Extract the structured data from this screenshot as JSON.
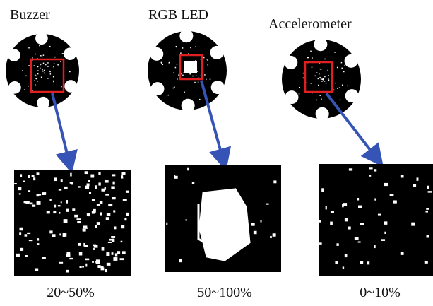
{
  "panels": [
    {
      "label": "Buzzer",
      "caption": "20~50%"
    },
    {
      "label": "RGB LED",
      "caption": "50~100%"
    },
    {
      "label": "Accelerometer",
      "caption": "0~10%"
    }
  ]
}
